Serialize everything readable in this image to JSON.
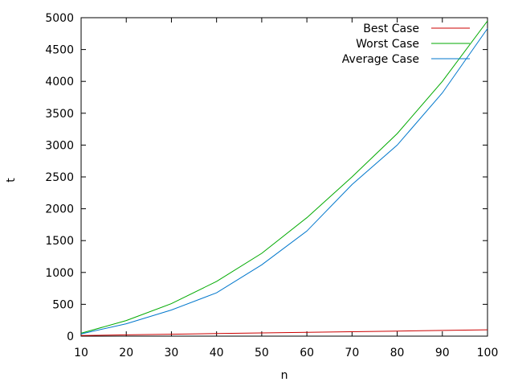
{
  "chart_data": {
    "type": "line",
    "title": "",
    "xlabel": "n",
    "ylabel": "t",
    "xlim": [
      10,
      100
    ],
    "ylim": [
      0,
      5000
    ],
    "xticks": [
      10,
      20,
      30,
      40,
      50,
      60,
      70,
      80,
      90,
      100
    ],
    "yticks": [
      0,
      500,
      1000,
      1500,
      2000,
      2500,
      3000,
      3500,
      4000,
      4500,
      5000
    ],
    "grid": false,
    "legend_position": "top-right",
    "series": [
      {
        "name": "Best Case",
        "color": "#cc0000",
        "x": [
          10,
          20,
          30,
          40,
          50,
          60,
          70,
          80,
          90,
          100
        ],
        "y": [
          10,
          20,
          30,
          40,
          50,
          60,
          70,
          80,
          90,
          100
        ]
      },
      {
        "name": "Worst Case",
        "color": "#00aa00",
        "x": [
          10,
          20,
          30,
          40,
          50,
          60,
          70,
          80,
          90,
          100
        ],
        "y": [
          45,
          245,
          510,
          860,
          1300,
          1860,
          2500,
          3180,
          4000,
          4950
        ]
      },
      {
        "name": "Average Case",
        "color": "#0077cc",
        "x": [
          10,
          20,
          30,
          40,
          50,
          60,
          70,
          80,
          90,
          100
        ],
        "y": [
          35,
          195,
          410,
          680,
          1120,
          1650,
          2380,
          3000,
          3820,
          4830
        ]
      }
    ]
  }
}
